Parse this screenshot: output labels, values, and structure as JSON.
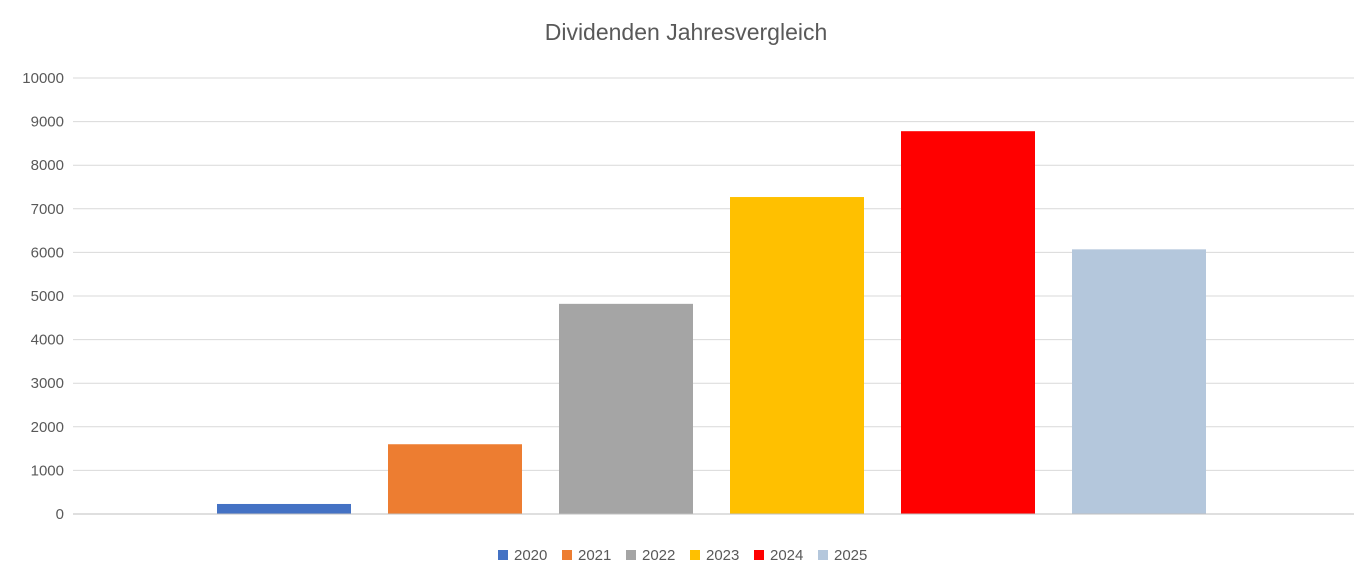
{
  "chart_data": {
    "type": "bar",
    "title": "Dividenden Jahresvergleich",
    "xlabel": "",
    "ylabel": "",
    "ylim": [
      0,
      10000
    ],
    "yticks": [
      0,
      1000,
      2000,
      3000,
      4000,
      5000,
      6000,
      7000,
      8000,
      9000,
      10000
    ],
    "grid": true,
    "legend_position": "bottom",
    "series": [
      {
        "name": "2020",
        "value": 230,
        "color": "#4472C4"
      },
      {
        "name": "2021",
        "value": 1600,
        "color": "#ED7D31"
      },
      {
        "name": "2022",
        "value": 4820,
        "color": "#A5A5A5"
      },
      {
        "name": "2023",
        "value": 7270,
        "color": "#FFC000"
      },
      {
        "name": "2024",
        "value": 8780,
        "color": "#FF0000"
      },
      {
        "name": "2025",
        "value": 6070,
        "color": "#B4C7DC"
      }
    ]
  }
}
